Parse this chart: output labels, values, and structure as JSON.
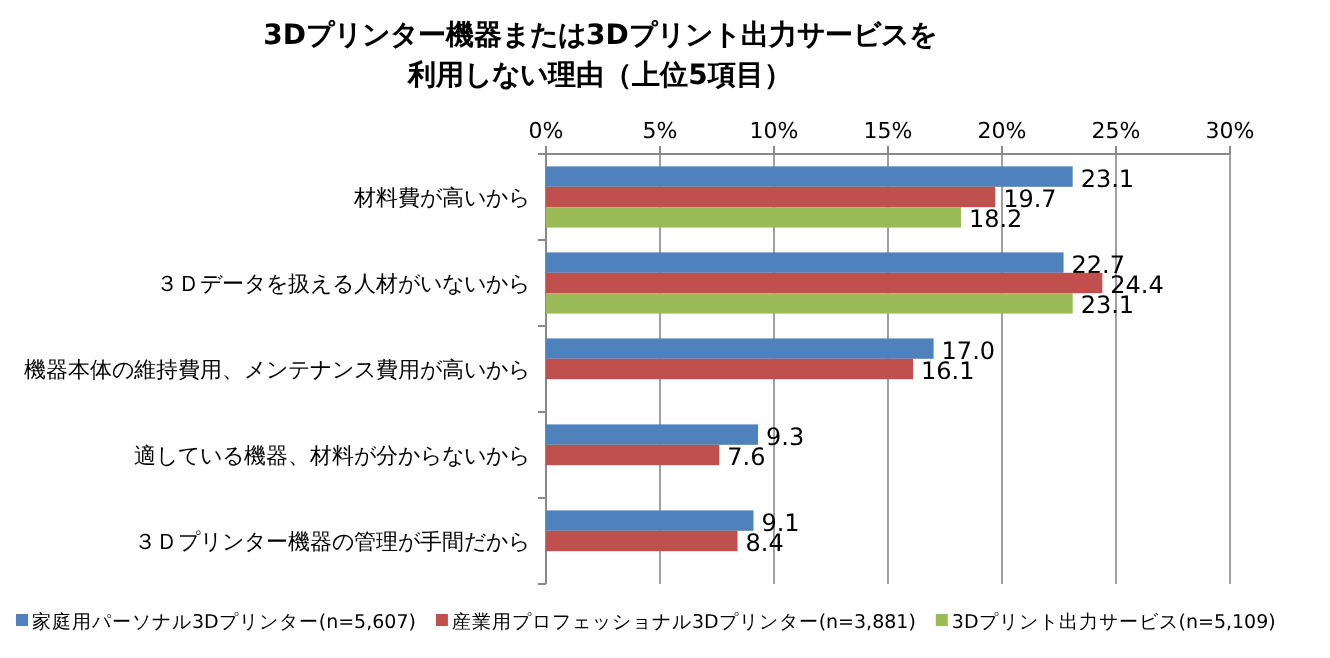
{
  "chart_data": {
    "type": "bar",
    "orientation": "horizontal",
    "title": "3Dプリンター機器または3Dプリント出力サービスを",
    "subtitle": "利用しない理由（上位5項目）",
    "categories": [
      "材料費が高いから",
      "３Ｄデータを扱える人材がいないから",
      "機器本体の維持費用、メンテナンス費用が高いから",
      "適している機器、材料が分からないから",
      "３Ｄプリンター機器の管理が手間だから"
    ],
    "series": [
      {
        "name": "家庭用パーソナル3Dプリンター(n=5,607)",
        "color": "#4f81bd",
        "values": [
          23.1,
          22.7,
          17.0,
          9.3,
          9.1
        ],
        "value_labels": [
          "23.1",
          "22.7",
          "17.0",
          "9.3",
          "9.1"
        ]
      },
      {
        "name": "産業用プロフェッショナル3Dプリンター(n=3,881)",
        "color": "#c0504d",
        "values": [
          19.7,
          24.4,
          16.1,
          7.6,
          8.4
        ],
        "value_labels": [
          "19.7",
          "24.4",
          "16.1",
          "7.6",
          "8.4"
        ]
      },
      {
        "name": "3Dプリント出力サービス(n=5,109)",
        "color": "#9bbb59",
        "values": [
          18.2,
          23.1,
          null,
          null,
          null
        ],
        "value_labels": [
          "18.2",
          "23.1",
          null,
          null,
          null
        ]
      }
    ],
    "xlim": [
      0,
      30
    ],
    "xticks": [
      {
        "value": 0,
        "label": "0%"
      },
      {
        "value": 5,
        "label": "5%"
      },
      {
        "value": 10,
        "label": "10%"
      },
      {
        "value": 15,
        "label": "15%"
      },
      {
        "value": 20,
        "label": "20%"
      },
      {
        "value": 25,
        "label": "25%"
      },
      {
        "value": 30,
        "label": "30%"
      }
    ],
    "grid": "x",
    "legend": "bottom"
  }
}
